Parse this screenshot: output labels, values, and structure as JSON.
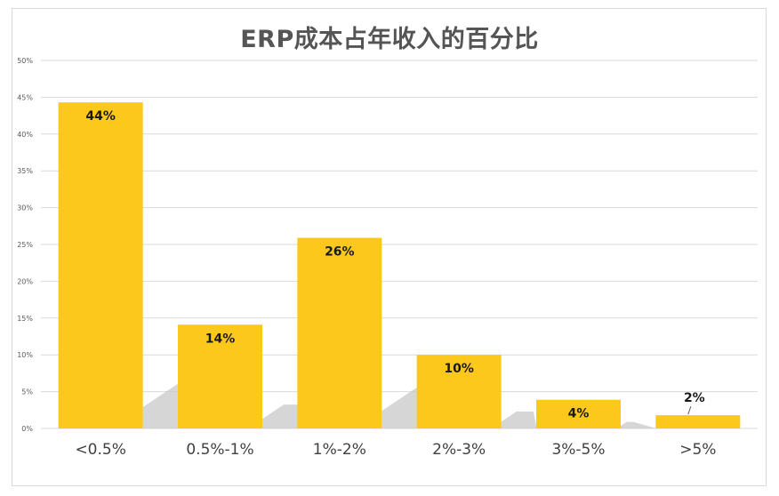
{
  "chart_data": {
    "type": "bar",
    "title": "ERP成本占年收入的百分比",
    "categories": [
      "<0.5%",
      "0.5%-1%",
      "1%-2%",
      "2%-3%",
      "3%-5%",
      ">5%"
    ],
    "values": [
      44,
      14,
      26,
      10,
      4,
      2
    ],
    "value_labels": [
      "44%",
      "14%",
      "26%",
      "10%",
      "4%",
      "2%"
    ],
    "bar_heights": [
      44.3,
      14.1,
      25.9,
      10.0,
      3.9,
      1.8
    ],
    "y_ticks": [
      "0%",
      "5%",
      "10%",
      "15%",
      "20%",
      "25%",
      "30%",
      "35%",
      "40%",
      "45%",
      "50%"
    ],
    "ylim": [
      0,
      50
    ],
    "xlabel": "",
    "ylabel": "",
    "grid": true,
    "bar_color": "#fcc81c",
    "grid_color": "#d9d9d9",
    "shadow_color": "#c8c8c8"
  }
}
